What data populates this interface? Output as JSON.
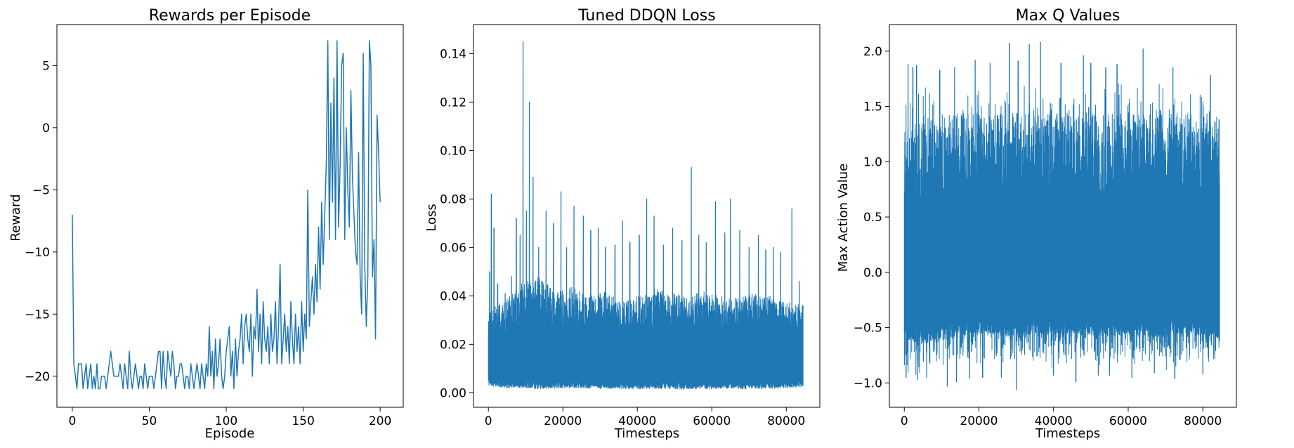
{
  "chart_data": [
    {
      "type": "line",
      "title": "Rewards per Episode",
      "xlabel": "Episode",
      "ylabel": "Reward",
      "xlim": [
        -10,
        215
      ],
      "ylim": [
        -22.5,
        8.3
      ],
      "xticks": [
        0,
        50,
        100,
        150,
        200
      ],
      "yticks": [
        -20,
        -15,
        -10,
        -5,
        0,
        5
      ],
      "color": "#1f77b4",
      "grid": false,
      "series": [
        {
          "x_start": 0,
          "x_step": 1,
          "values": [
            -7,
            -19,
            -20,
            -21,
            -19,
            -19,
            -19,
            -21,
            -20,
            -19,
            -21,
            -20,
            -19,
            -21,
            -20,
            -21,
            -19,
            -21,
            -21,
            -20,
            -20,
            -20,
            -21,
            -20,
            -19,
            -18,
            -19,
            -20,
            -20,
            -20,
            -20,
            -19,
            -20,
            -21,
            -19,
            -20,
            -21,
            -18,
            -20,
            -21,
            -20,
            -19,
            -20,
            -21,
            -20,
            -20,
            -21,
            -19,
            -20,
            -21,
            -20,
            -20,
            -20,
            -21,
            -20,
            -19,
            -18,
            -18,
            -21,
            -18,
            -20,
            -21,
            -18,
            -19,
            -20,
            -18,
            -19,
            -21,
            -20,
            -20,
            -19,
            -19,
            -20,
            -21,
            -20,
            -20,
            -21,
            -19,
            -20,
            -21,
            -20,
            -19,
            -20,
            -21,
            -19,
            -20,
            -21,
            -19,
            -20,
            -16,
            -20,
            -18,
            -21,
            -17,
            -20,
            -19,
            -17,
            -20,
            -21,
            -20,
            -18,
            -17,
            -16,
            -20,
            -18,
            -21,
            -17,
            -20,
            -18,
            -17,
            -15,
            -19,
            -16,
            -15,
            -17,
            -18,
            -15,
            -20,
            -16,
            -17,
            -13,
            -18,
            -15,
            -19,
            -14,
            -17,
            -18,
            -16,
            -19,
            -15,
            -18,
            -17,
            -14,
            -19,
            -16,
            -11,
            -19,
            -17,
            -15,
            -18,
            -16,
            -19,
            -14,
            -17,
            -19,
            -15,
            -18,
            -16,
            -19,
            -14,
            -18,
            -15,
            -17,
            -5,
            -16,
            -14,
            -12,
            -15,
            -11,
            -14,
            -8,
            -13,
            -6,
            -11,
            -7,
            -3,
            7,
            -9,
            2,
            -6,
            4,
            -9,
            7,
            -8,
            -3,
            5,
            6,
            -9,
            0,
            -5,
            -8,
            3,
            -4,
            -7,
            -10,
            -11,
            -2,
            -12,
            -15,
            6,
            -11,
            -16,
            -12,
            7,
            5,
            -12,
            -9,
            -17,
            1,
            -2,
            -6
          ]
        }
      ]
    },
    {
      "type": "line",
      "title": "Tuned DDQN Loss",
      "xlabel": "Timesteps",
      "ylabel": "Loss",
      "xlim": [
        -4000,
        89000
      ],
      "ylim": [
        -0.006,
        0.152
      ],
      "xticks": [
        0,
        20000,
        40000,
        60000,
        80000
      ],
      "yticks": [
        0.0,
        0.02,
        0.04,
        0.06,
        0.08,
        0.1,
        0.12,
        0.14
      ],
      "ytick_decimals": 2,
      "color": "#1f77b4",
      "grid": false,
      "series": [
        {
          "x_range": [
            0,
            84500
          ],
          "points": 84500,
          "envelope_low": [
            0.003,
            0.002,
            0.002,
            0.0015,
            0.0018,
            0.002,
            0.0018,
            0.0016,
            0.0015,
            0.0016,
            0.0017,
            0.0016,
            0.0015,
            0.0016,
            0.0017,
            0.0016,
            0.0015,
            0.0016,
            0.002,
            0.0025
          ],
          "envelope_high": [
            0.035,
            0.038,
            0.045,
            0.048,
            0.042,
            0.044,
            0.04,
            0.042,
            0.038,
            0.04,
            0.043,
            0.041,
            0.04,
            0.042,
            0.04,
            0.039,
            0.041,
            0.04,
            0.038,
            0.036
          ],
          "spikes": [
            [
              300,
              0.05
            ],
            [
              800,
              0.082
            ],
            [
              1500,
              0.068
            ],
            [
              2500,
              0.045
            ],
            [
              4500,
              0.041
            ],
            [
              6200,
              0.048
            ],
            [
              7500,
              0.072
            ],
            [
              8500,
              0.065
            ],
            [
              9300,
              0.145
            ],
            [
              10200,
              0.075
            ],
            [
              11000,
              0.12
            ],
            [
              12000,
              0.089
            ],
            [
              13500,
              0.06
            ],
            [
              15500,
              0.075
            ],
            [
              17500,
              0.07
            ],
            [
              19500,
              0.083
            ],
            [
              21000,
              0.06
            ],
            [
              23000,
              0.077
            ],
            [
              25500,
              0.073
            ],
            [
              27500,
              0.067
            ],
            [
              29500,
              0.068
            ],
            [
              31500,
              0.06
            ],
            [
              34000,
              0.061
            ],
            [
              36000,
              0.071
            ],
            [
              38000,
              0.062
            ],
            [
              40500,
              0.065
            ],
            [
              42500,
              0.08
            ],
            [
              44500,
              0.073
            ],
            [
              47000,
              0.061
            ],
            [
              49500,
              0.068
            ],
            [
              52000,
              0.063
            ],
            [
              54500,
              0.093
            ],
            [
              56500,
              0.065
            ],
            [
              58500,
              0.062
            ],
            [
              61000,
              0.079
            ],
            [
              63500,
              0.066
            ],
            [
              65000,
              0.08
            ],
            [
              67500,
              0.067
            ],
            [
              70000,
              0.06
            ],
            [
              72500,
              0.065
            ],
            [
              74500,
              0.059
            ],
            [
              76500,
              0.06
            ],
            [
              78500,
              0.058
            ],
            [
              81500,
              0.076
            ],
            [
              83500,
              0.046
            ],
            [
              84500,
              0.036
            ]
          ]
        }
      ]
    },
    {
      "type": "line",
      "title": "Max Q Values",
      "xlabel": "Timesteps",
      "ylabel": "Max Action Value",
      "xlim": [
        -4000,
        89000
      ],
      "ylim": [
        -1.22,
        2.24
      ],
      "xticks": [
        0,
        20000,
        40000,
        60000,
        80000
      ],
      "yticks": [
        -1.0,
        -0.5,
        0.0,
        0.5,
        1.0,
        1.5,
        2.0
      ],
      "ytick_decimals": 1,
      "color": "#1f77b4",
      "grid": false,
      "series": [
        {
          "x_range": [
            0,
            84500
          ],
          "points": 84500,
          "envelope_low": [
            -0.6,
            -0.65,
            -0.62,
            -0.6,
            -0.55,
            -0.55,
            -0.58,
            -0.6,
            -0.55,
            -0.57,
            -0.55,
            -0.56,
            -0.58,
            -0.57,
            -0.55,
            -0.6,
            -0.56,
            -0.57,
            -0.58,
            -0.6
          ],
          "envelope_high": [
            1.3,
            1.38,
            1.42,
            1.45,
            1.45,
            1.43,
            1.44,
            1.46,
            1.45,
            1.44,
            1.45,
            1.46,
            1.44,
            1.45,
            1.43,
            1.44,
            1.45,
            1.44,
            1.42,
            1.4
          ],
          "min_band": [
            -0.9,
            -1.0,
            -0.95,
            -0.92,
            -0.9,
            -0.88,
            -0.9,
            -0.92,
            -0.85,
            -0.88,
            -0.9,
            -0.85,
            -0.87,
            -0.9,
            -0.88,
            -0.85,
            -0.9,
            -0.88,
            -0.85,
            -0.8
          ],
          "max_band": [
            1.7,
            1.85,
            1.8,
            1.75,
            1.75,
            1.78,
            1.82,
            1.8,
            1.78,
            1.75,
            1.76,
            1.8,
            1.78,
            1.75,
            1.74,
            1.78,
            1.75,
            1.73,
            1.72,
            1.7
          ],
          "spikes": [
            [
              1000,
              1.88
            ],
            [
              2300,
              1.85
            ],
            [
              3300,
              1.87
            ],
            [
              9500,
              1.83
            ],
            [
              13500,
              1.85
            ],
            [
              19000,
              1.92
            ],
            [
              23000,
              1.89
            ],
            [
              28200,
              2.07
            ],
            [
              30500,
              1.91
            ],
            [
              33500,
              2.06
            ],
            [
              36500,
              2.08
            ],
            [
              42000,
              1.89
            ],
            [
              48000,
              1.96
            ],
            [
              50000,
              1.89
            ],
            [
              54000,
              1.85
            ],
            [
              57000,
              1.88
            ],
            [
              64000,
              2.02
            ],
            [
              72000,
              1.85
            ],
            [
              82000,
              1.78
            ],
            [
              500,
              -0.95
            ],
            [
              3500,
              -0.97
            ],
            [
              6000,
              -0.95
            ],
            [
              11500,
              -1.03
            ],
            [
              14000,
              -0.99
            ],
            [
              17500,
              -0.96
            ],
            [
              21000,
              -0.95
            ],
            [
              26000,
              -0.95
            ],
            [
              30000,
              -1.06
            ],
            [
              40000,
              -0.93
            ],
            [
              46000,
              -0.99
            ],
            [
              52000,
              -0.93
            ],
            [
              55000,
              -0.93
            ],
            [
              61000,
              -0.95
            ],
            [
              67000,
              -0.91
            ],
            [
              72500,
              -0.96
            ],
            [
              80000,
              -0.92
            ]
          ]
        }
      ]
    }
  ]
}
